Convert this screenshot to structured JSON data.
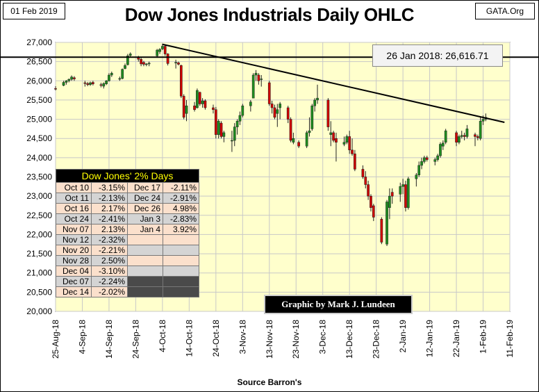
{
  "header": {
    "date": "01 Feb 2019",
    "site": "GATA.Org",
    "source": "Source Barron's"
  },
  "callout": "26 Jan 2018: 26,616.71",
  "credit": "Graphic by Mark J. Lundeen",
  "colors": {
    "plot_bg": "#ffffcc",
    "up": "#1e8c1e",
    "down": "#d00000",
    "grid": "#c8c8c8"
  },
  "two_pct_table": {
    "title": "Dow Jones' 2% Days",
    "left": [
      {
        "date": "Oct 10",
        "value": "-3.15%"
      },
      {
        "date": "Oct 11",
        "value": "-2.13%"
      },
      {
        "date": "Oct 16",
        "value": "2.17%"
      },
      {
        "date": "Oct 24",
        "value": "-2.41%"
      },
      {
        "date": "Nov 07",
        "value": "2.13%"
      },
      {
        "date": "Nov 12",
        "value": "-2.32%"
      },
      {
        "date": "Nov 20",
        "value": "-2.21%"
      },
      {
        "date": "Nov 28",
        "value": "2.50%"
      },
      {
        "date": "Dec 04",
        "value": "-3.10%"
      },
      {
        "date": "Dec 07",
        "value": "-2.24%"
      },
      {
        "date": "Dec 14",
        "value": "-2.02%"
      }
    ],
    "right": [
      {
        "date": "Dec 17",
        "value": "-2.11%"
      },
      {
        "date": "Dec 24",
        "value": "-2.91%"
      },
      {
        "date": "Dec 26",
        "value": "4.98%"
      },
      {
        "date": "Jan 3",
        "value": "-2.83%"
      },
      {
        "date": "Jan 4",
        "value": "3.92%"
      }
    ]
  },
  "chart_data": {
    "type": "ohlc",
    "title": "Dow Jones Industrials Daily OHLC",
    "xlabel": "",
    "ylabel": "",
    "ylim": [
      20000,
      27000
    ],
    "yticks": [
      "20,000",
      "20,500",
      "21,000",
      "21,500",
      "22,000",
      "22,500",
      "23,000",
      "23,500",
      "24,000",
      "24,500",
      "25,000",
      "25,500",
      "26,000",
      "26,500",
      "27,000"
    ],
    "xticks": [
      "25-Aug-18",
      "4-Sep-18",
      "14-Sep-18",
      "24-Sep-18",
      "4-Oct-18",
      "14-Oct-18",
      "24-Oct-18",
      "3-Nov-18",
      "13-Nov-18",
      "23-Nov-18",
      "3-Dec-18",
      "13-Dec-18",
      "23-Dec-18",
      "2-Jan-19",
      "12-Jan-19",
      "22-Jan-19",
      "1-Feb-19",
      "11-Feb-19"
    ],
    "xrange_days": [
      0,
      170
    ],
    "reference_line": {
      "value": 26616.71,
      "label": "26 Jan 2018: 26,616.71"
    },
    "trendline": {
      "start": {
        "day": 40,
        "value": 26950
      },
      "end": {
        "day": 168,
        "value": 24920
      }
    },
    "grid": true,
    "candles": [
      {
        "day": 0,
        "o": 25800,
        "h": 25860,
        "l": 25750,
        "c": 25790
      },
      {
        "day": 3,
        "o": 25880,
        "h": 26000,
        "l": 25860,
        "c": 25960
      },
      {
        "day": 4,
        "o": 25960,
        "h": 26020,
        "l": 25900,
        "c": 26000
      },
      {
        "day": 5,
        "o": 26000,
        "h": 26060,
        "l": 25960,
        "c": 26040
      },
      {
        "day": 6,
        "o": 26040,
        "h": 26140,
        "l": 26000,
        "c": 26100
      },
      {
        "day": 7,
        "o": 26080,
        "h": 26120,
        "l": 26000,
        "c": 26050
      },
      {
        "day": 11,
        "o": 25950,
        "h": 26000,
        "l": 25850,
        "c": 25930
      },
      {
        "day": 12,
        "o": 25930,
        "h": 25970,
        "l": 25860,
        "c": 25900
      },
      {
        "day": 13,
        "o": 25900,
        "h": 25980,
        "l": 25870,
        "c": 25950
      },
      {
        "day": 14,
        "o": 25960,
        "h": 26000,
        "l": 25880,
        "c": 25920
      },
      {
        "day": 17,
        "o": 25900,
        "h": 25950,
        "l": 25830,
        "c": 25880
      },
      {
        "day": 18,
        "o": 25860,
        "h": 25960,
        "l": 25800,
        "c": 25930
      },
      {
        "day": 19,
        "o": 25920,
        "h": 26020,
        "l": 25890,
        "c": 26000
      },
      {
        "day": 20,
        "o": 26000,
        "h": 26200,
        "l": 25980,
        "c": 26150
      },
      {
        "day": 21,
        "o": 26150,
        "h": 26240,
        "l": 26100,
        "c": 26200
      },
      {
        "day": 24,
        "o": 26060,
        "h": 26110,
        "l": 26000,
        "c": 26060
      },
      {
        "day": 25,
        "o": 26060,
        "h": 26320,
        "l": 26040,
        "c": 26300
      },
      {
        "day": 26,
        "o": 26320,
        "h": 26450,
        "l": 26300,
        "c": 26400
      },
      {
        "day": 27,
        "o": 26420,
        "h": 26700,
        "l": 26400,
        "c": 26650
      },
      {
        "day": 28,
        "o": 26660,
        "h": 26740,
        "l": 26620,
        "c": 26700
      },
      {
        "day": 31,
        "o": 26600,
        "h": 26650,
        "l": 26500,
        "c": 26560
      },
      {
        "day": 32,
        "o": 26560,
        "h": 26600,
        "l": 26380,
        "c": 26440
      },
      {
        "day": 33,
        "o": 26480,
        "h": 26520,
        "l": 26380,
        "c": 26430
      },
      {
        "day": 34,
        "o": 26430,
        "h": 26460,
        "l": 26380,
        "c": 26440
      },
      {
        "day": 35,
        "o": 26440,
        "h": 26500,
        "l": 26380,
        "c": 26460
      },
      {
        "day": 38,
        "o": 26650,
        "h": 26830,
        "l": 26600,
        "c": 26800
      },
      {
        "day": 39,
        "o": 26760,
        "h": 26850,
        "l": 26700,
        "c": 26820
      },
      {
        "day": 40,
        "o": 26830,
        "h": 26960,
        "l": 26800,
        "c": 26900
      },
      {
        "day": 41,
        "o": 26900,
        "h": 26930,
        "l": 26650,
        "c": 26700
      },
      {
        "day": 42,
        "o": 26700,
        "h": 26720,
        "l": 26400,
        "c": 26450
      },
      {
        "day": 45,
        "o": 26480,
        "h": 26550,
        "l": 26320,
        "c": 26480
      },
      {
        "day": 46,
        "o": 26470,
        "h": 26500,
        "l": 26400,
        "c": 26430
      },
      {
        "day": 47,
        "o": 26400,
        "h": 26420,
        "l": 25550,
        "c": 25600
      },
      {
        "day": 48,
        "o": 25600,
        "h": 25650,
        "l": 25000,
        "c": 25050
      },
      {
        "day": 49,
        "o": 25150,
        "h": 25500,
        "l": 24950,
        "c": 25350
      },
      {
        "day": 52,
        "o": 25350,
        "h": 25450,
        "l": 25200,
        "c": 25250
      },
      {
        "day": 53,
        "o": 25300,
        "h": 25800,
        "l": 25280,
        "c": 25750
      },
      {
        "day": 54,
        "o": 25700,
        "h": 25720,
        "l": 25350,
        "c": 25400
      },
      {
        "day": 55,
        "o": 25400,
        "h": 25550,
        "l": 25300,
        "c": 25480
      },
      {
        "day": 56,
        "o": 25480,
        "h": 25520,
        "l": 25250,
        "c": 25300
      },
      {
        "day": 59,
        "o": 25300,
        "h": 25380,
        "l": 25150,
        "c": 25250
      },
      {
        "day": 60,
        "o": 25250,
        "h": 25320,
        "l": 24500,
        "c": 24600
      },
      {
        "day": 61,
        "o": 24600,
        "h": 25000,
        "l": 24500,
        "c": 24950
      },
      {
        "day": 62,
        "o": 24900,
        "h": 24950,
        "l": 24500,
        "c": 24550
      },
      {
        "day": 63,
        "o": 24550,
        "h": 24700,
        "l": 24400,
        "c": 24650
      },
      {
        "day": 66,
        "o": 24450,
        "h": 24700,
        "l": 24150,
        "c": 24450
      },
      {
        "day": 67,
        "o": 24450,
        "h": 24900,
        "l": 24300,
        "c": 24800
      },
      {
        "day": 68,
        "o": 24800,
        "h": 25000,
        "l": 24600,
        "c": 24950
      },
      {
        "day": 69,
        "o": 24950,
        "h": 25200,
        "l": 24850,
        "c": 25100
      },
      {
        "day": 70,
        "o": 25100,
        "h": 25400,
        "l": 25050,
        "c": 25350
      },
      {
        "day": 73,
        "o": 25350,
        "h": 25500,
        "l": 25200,
        "c": 25450
      },
      {
        "day": 74,
        "o": 25550,
        "h": 26200,
        "l": 25550,
        "c": 26150
      },
      {
        "day": 75,
        "o": 26150,
        "h": 26280,
        "l": 26000,
        "c": 26200
      },
      {
        "day": 76,
        "o": 26150,
        "h": 26200,
        "l": 25900,
        "c": 26000
      },
      {
        "day": 77,
        "o": 26050,
        "h": 26150,
        "l": 25850,
        "c": 26050
      },
      {
        "day": 80,
        "o": 25950,
        "h": 26000,
        "l": 25350,
        "c": 25400
      },
      {
        "day": 81,
        "o": 25400,
        "h": 25480,
        "l": 25150,
        "c": 25300
      },
      {
        "day": 82,
        "o": 25300,
        "h": 25380,
        "l": 25000,
        "c": 25050
      },
      {
        "day": 83,
        "o": 25150,
        "h": 25400,
        "l": 24800,
        "c": 25250
      },
      {
        "day": 84,
        "o": 25300,
        "h": 25450,
        "l": 25000,
        "c": 25400
      },
      {
        "day": 87,
        "o": 25300,
        "h": 25350,
        "l": 24900,
        "c": 25000
      },
      {
        "day": 88,
        "o": 25000,
        "h": 25050,
        "l": 24400,
        "c": 24450
      },
      {
        "day": 89,
        "o": 24400,
        "h": 24650,
        "l": 24350,
        "c": 24500
      },
      {
        "day": 91,
        "o": 24400,
        "h": 24450,
        "l": 24250,
        "c": 24300
      },
      {
        "day": 94,
        "o": 24300,
        "h": 24700,
        "l": 24250,
        "c": 24650
      },
      {
        "day": 95,
        "o": 24650,
        "h": 25050,
        "l": 24550,
        "c": 24700
      },
      {
        "day": 96,
        "o": 24750,
        "h": 25400,
        "l": 24700,
        "c": 25350
      },
      {
        "day": 97,
        "o": 25350,
        "h": 25550,
        "l": 25200,
        "c": 25500
      },
      {
        "day": 98,
        "o": 25500,
        "h": 25900,
        "l": 25400,
        "c": 25550
      },
      {
        "day": 102,
        "o": 25500,
        "h": 25550,
        "l": 24700,
        "c": 24800
      },
      {
        "day": 103,
        "o": 24600,
        "h": 24950,
        "l": 24300,
        "c": 24650
      },
      {
        "day": 104,
        "o": 24650,
        "h": 24700,
        "l": 24400,
        "c": 24450
      },
      {
        "day": 105,
        "o": 24500,
        "h": 24650,
        "l": 23900,
        "c": 24400
      },
      {
        "day": 108,
        "o": 24350,
        "h": 24550,
        "l": 24300,
        "c": 24400
      },
      {
        "day": 109,
        "o": 24400,
        "h": 24600,
        "l": 24350,
        "c": 24550
      },
      {
        "day": 110,
        "o": 24550,
        "h": 24700,
        "l": 24100,
        "c": 24200
      },
      {
        "day": 111,
        "o": 24200,
        "h": 24500,
        "l": 24050,
        "c": 24100
      },
      {
        "day": 112,
        "o": 24100,
        "h": 24200,
        "l": 23650,
        "c": 23700
      },
      {
        "day": 115,
        "o": 23700,
        "h": 23800,
        "l": 23450,
        "c": 23500
      },
      {
        "day": 116,
        "o": 23500,
        "h": 23650,
        "l": 23200,
        "c": 23300
      },
      {
        "day": 117,
        "o": 23300,
        "h": 23400,
        "l": 22900,
        "c": 23000
      },
      {
        "day": 118,
        "o": 23000,
        "h": 23050,
        "l": 22600,
        "c": 22700
      },
      {
        "day": 119,
        "o": 22750,
        "h": 22800,
        "l": 22350,
        "c": 22450
      },
      {
        "day": 122,
        "o": 22400,
        "h": 22450,
        "l": 21750,
        "c": 21800
      },
      {
        "day": 124,
        "o": 21750,
        "h": 22900,
        "l": 21700,
        "c": 22850
      },
      {
        "day": 125,
        "o": 22700,
        "h": 23200,
        "l": 22400,
        "c": 23000
      },
      {
        "day": 126,
        "o": 23100,
        "h": 23200,
        "l": 22800,
        "c": 23000
      },
      {
        "day": 129,
        "o": 23050,
        "h": 23350,
        "l": 22850,
        "c": 23250
      },
      {
        "day": 130,
        "o": 23250,
        "h": 23450,
        "l": 23050,
        "c": 23300
      },
      {
        "day": 131,
        "o": 23300,
        "h": 23400,
        "l": 22600,
        "c": 22700
      },
      {
        "day": 132,
        "o": 22700,
        "h": 23500,
        "l": 22650,
        "c": 23450
      },
      {
        "day": 135,
        "o": 23450,
        "h": 23600,
        "l": 23250,
        "c": 23550
      },
      {
        "day": 136,
        "o": 23550,
        "h": 23900,
        "l": 23500,
        "c": 23800
      },
      {
        "day": 137,
        "o": 23800,
        "h": 24000,
        "l": 23700,
        "c": 23900
      },
      {
        "day": 138,
        "o": 23900,
        "h": 24050,
        "l": 23850,
        "c": 24000
      },
      {
        "day": 139,
        "o": 24000,
        "h": 24050,
        "l": 23900,
        "c": 23950
      },
      {
        "day": 142,
        "o": 23900,
        "h": 24000,
        "l": 23800,
        "c": 23950
      },
      {
        "day": 143,
        "o": 23950,
        "h": 24100,
        "l": 23900,
        "c": 24050
      },
      {
        "day": 144,
        "o": 24050,
        "h": 24400,
        "l": 24000,
        "c": 24350
      },
      {
        "day": 145,
        "o": 24300,
        "h": 24450,
        "l": 24200,
        "c": 24380
      },
      {
        "day": 146,
        "o": 24400,
        "h": 24750,
        "l": 24350,
        "c": 24700
      },
      {
        "day": 150,
        "o": 24650,
        "h": 24700,
        "l": 24300,
        "c": 24400
      },
      {
        "day": 151,
        "o": 24400,
        "h": 24600,
        "l": 24350,
        "c": 24550
      },
      {
        "day": 152,
        "o": 24550,
        "h": 24700,
        "l": 24500,
        "c": 24580
      },
      {
        "day": 153,
        "o": 24580,
        "h": 24650,
        "l": 24450,
        "c": 24550
      },
      {
        "day": 154,
        "o": 24550,
        "h": 24850,
        "l": 24500,
        "c": 24750
      },
      {
        "day": 157,
        "o": 24600,
        "h": 24650,
        "l": 24300,
        "c": 24550
      },
      {
        "day": 158,
        "o": 24550,
        "h": 24600,
        "l": 24450,
        "c": 24520
      },
      {
        "day": 159,
        "o": 24500,
        "h": 25050,
        "l": 24450,
        "c": 24950
      },
      {
        "day": 160,
        "o": 24950,
        "h": 25100,
        "l": 24850,
        "c": 25000
      },
      {
        "day": 161,
        "o": 25000,
        "h": 25150,
        "l": 24950,
        "c": 25050
      }
    ]
  }
}
